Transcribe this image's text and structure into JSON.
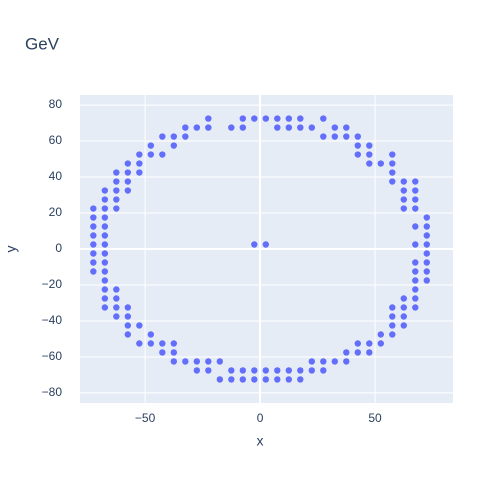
{
  "chart_data": {
    "type": "scatter",
    "title": "GeV",
    "x_label": "x",
    "y_label": "y",
    "color": "#636efa",
    "grid": true,
    "xlim": [
      -78.3,
      83.9
    ],
    "ylim": [
      -85.6,
      85.6
    ],
    "xticks": [
      {
        "value": -50,
        "label": "−50"
      },
      0,
      50
    ],
    "yticks": [
      {
        "value": -80,
        "label": "−80"
      },
      {
        "value": -60,
        "label": "−60"
      },
      {
        "value": -40,
        "label": "−40"
      },
      {
        "value": -20,
        "label": "−20"
      },
      0,
      20,
      40,
      60,
      80
    ],
    "x": [
      -22.5,
      -7.5,
      -2.5,
      2.5,
      7.5,
      12.5,
      17.5,
      27.5,
      -32.5,
      -27.5,
      -22.5,
      -12.5,
      -7.5,
      7.5,
      12.5,
      17.5,
      22.5,
      32.5,
      37.5,
      -42.5,
      -37.5,
      -32.5,
      27.5,
      32.5,
      37.5,
      42.5,
      -47.5,
      -37.5,
      42.5,
      47.5,
      -52.5,
      -47.5,
      -42.5,
      42.5,
      47.5,
      57.5,
      -57.5,
      -52.5,
      47.5,
      52.5,
      57.5,
      -62.5,
      -57.5,
      -52.5,
      57.5,
      -62.5,
      -57.5,
      57.5,
      62.5,
      67.5,
      -67.5,
      -62.5,
      -57.5,
      62.5,
      67.5,
      -67.5,
      -62.5,
      62.5,
      67.5,
      -72.5,
      -67.5,
      -62.5,
      62.5,
      67.5,
      -72.5,
      -67.5,
      72.5,
      -72.5,
      -67.5,
      67.5,
      72.5,
      -72.5,
      -67.5,
      72.5,
      -72.5,
      -67.5,
      -2.5,
      2.5,
      67.5,
      72.5,
      -72.5,
      -67.5,
      72.5,
      -72.5,
      -67.5,
      67.5,
      72.5,
      -72.5,
      -67.5,
      67.5,
      72.5,
      -67.5,
      67.5,
      72.5,
      -67.5,
      -62.5,
      67.5,
      -67.5,
      -62.5,
      62.5,
      67.5,
      -67.5,
      -62.5,
      -57.5,
      57.5,
      62.5,
      67.5,
      -62.5,
      -57.5,
      57.5,
      62.5,
      -57.5,
      -52.5,
      57.5,
      62.5,
      -57.5,
      -47.5,
      52.5,
      57.5,
      -52.5,
      -47.5,
      -42.5,
      -37.5,
      42.5,
      47.5,
      52.5,
      -42.5,
      -37.5,
      37.5,
      42.5,
      47.5,
      -37.5,
      -32.5,
      -27.5,
      -22.5,
      -17.5,
      22.5,
      27.5,
      32.5,
      37.5,
      -27.5,
      -22.5,
      -12.5,
      -7.5,
      -2.5,
      2.5,
      7.5,
      12.5,
      17.5,
      22.5,
      27.5,
      -17.5,
      -12.5,
      -7.5,
      -2.5,
      2.5,
      7.5,
      12.5,
      17.5
    ],
    "y": [
      72.5,
      72.5,
      72.5,
      72.5,
      72.5,
      72.5,
      72.5,
      72.5,
      67.5,
      67.5,
      67.5,
      67.5,
      67.5,
      67.5,
      67.5,
      67.5,
      67.5,
      67.5,
      67.5,
      62.5,
      62.5,
      62.5,
      62.5,
      62.5,
      62.5,
      62.5,
      57.5,
      57.5,
      57.5,
      57.5,
      52.5,
      52.5,
      52.5,
      52.5,
      52.5,
      52.5,
      47.5,
      47.5,
      47.5,
      47.5,
      47.5,
      42.5,
      42.5,
      42.5,
      42.5,
      37.5,
      37.5,
      37.5,
      37.5,
      37.5,
      32.5,
      32.5,
      32.5,
      32.5,
      32.5,
      27.5,
      27.5,
      27.5,
      27.5,
      22.5,
      22.5,
      22.5,
      22.5,
      22.5,
      17.5,
      17.5,
      17.5,
      12.5,
      12.5,
      12.5,
      12.5,
      7.5,
      7.5,
      7.5,
      2.5,
      2.5,
      2.5,
      2.5,
      2.5,
      2.5,
      -2.5,
      -2.5,
      -2.5,
      -7.5,
      -7.5,
      -7.5,
      -7.5,
      -12.5,
      -12.5,
      -12.5,
      -12.5,
      -17.5,
      -17.5,
      -17.5,
      -22.5,
      -22.5,
      -22.5,
      -27.5,
      -27.5,
      -27.5,
      -27.5,
      -32.5,
      -32.5,
      -32.5,
      -32.5,
      -32.5,
      -32.5,
      -37.5,
      -37.5,
      -37.5,
      -37.5,
      -42.5,
      -42.5,
      -42.5,
      -42.5,
      -47.5,
      -47.5,
      -47.5,
      -47.5,
      -52.5,
      -52.5,
      -52.5,
      -52.5,
      -52.5,
      -52.5,
      -52.5,
      -57.5,
      -57.5,
      -57.5,
      -57.5,
      -57.5,
      -62.5,
      -62.5,
      -62.5,
      -62.5,
      -62.5,
      -62.5,
      -62.5,
      -62.5,
      -62.5,
      -67.5,
      -67.5,
      -67.5,
      -67.5,
      -67.5,
      -67.5,
      -67.5,
      -67.5,
      -67.5,
      -67.5,
      -67.5,
      -72.5,
      -72.5,
      -72.5,
      -72.5,
      -72.5,
      -72.5,
      -72.5,
      -72.5
    ]
  }
}
